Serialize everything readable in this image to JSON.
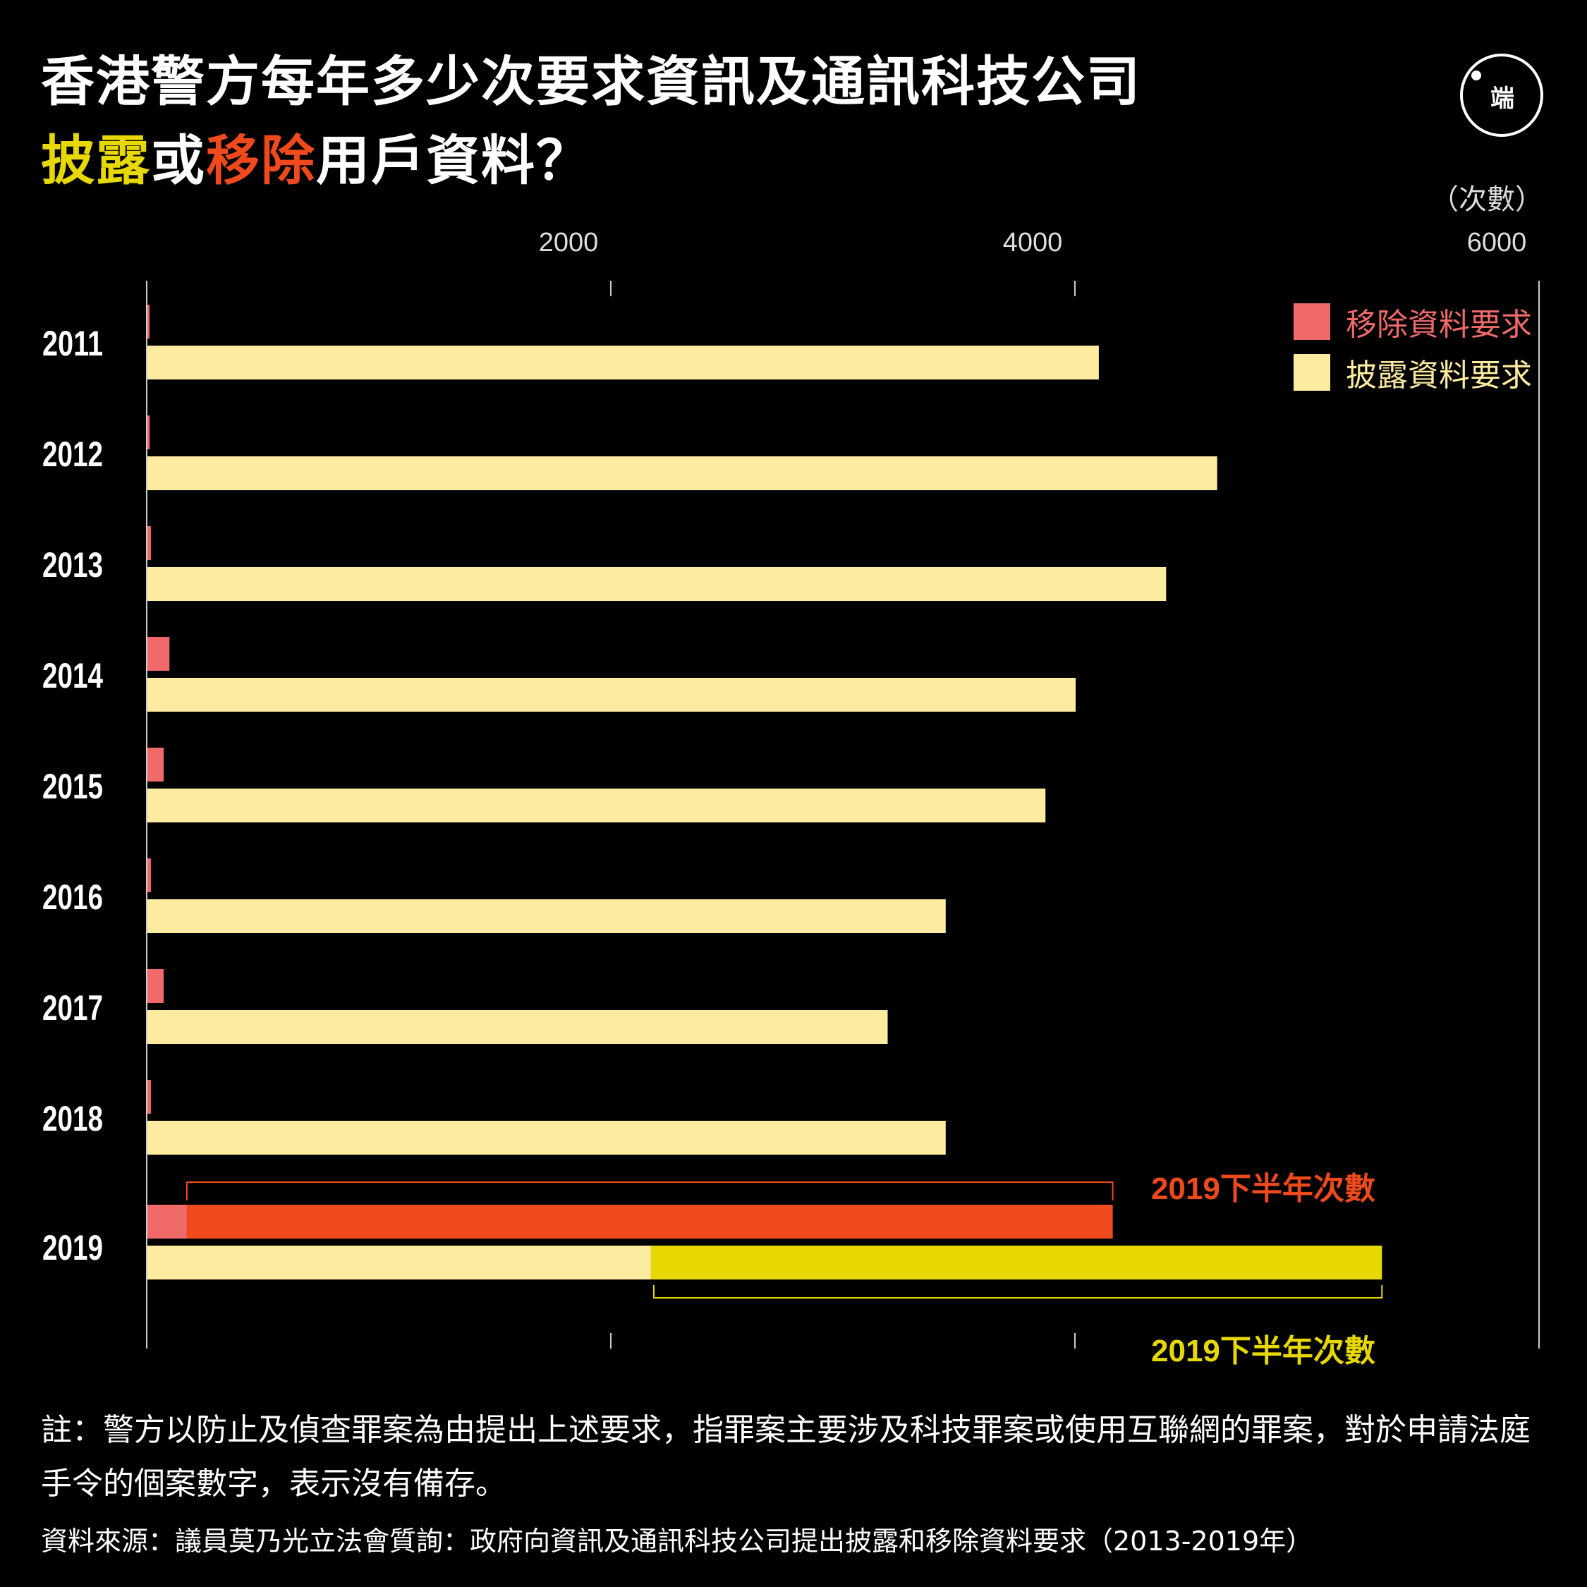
{
  "title": {
    "line1": "香港警方每年多少次要求資訊及通訊科技公司",
    "line2_part1": "披露",
    "line2_part2": "或",
    "line2_part3": "移除",
    "line2_part4": "用戶資料？"
  },
  "logo": {
    "glyph": "端"
  },
  "unit_label": "（次數）",
  "legend": [
    {
      "label": "移除資料要求",
      "color": "#f06a6a",
      "text_color": "#f06a6a"
    },
    {
      "label": "披露資料要求",
      "color": "#fdeba0",
      "text_color": "#fdeba0"
    }
  ],
  "colors": {
    "removal": "#f06a6a",
    "disclosure": "#fdeba0",
    "removal_h2": "#f04a1c",
    "disclosure_h2": "#e6d800",
    "axis": "#cccccc"
  },
  "annotations": {
    "removal_h2_label": "2019下半年次數",
    "disclosure_h2_label": "2019下半年次數"
  },
  "chart_data": {
    "type": "bar",
    "orientation": "horizontal",
    "categories": [
      "2011",
      "2012",
      "2013",
      "2014",
      "2015",
      "2016",
      "2017",
      "2018",
      "2019"
    ],
    "series": [
      {
        "name": "移除資料要求",
        "values": [
          5,
          10,
          15,
          95,
          70,
          15,
          70,
          15,
          4160
        ]
      },
      {
        "name": "披露資料要求",
        "values": [
          4100,
          4610,
          4390,
          4000,
          3870,
          3440,
          3190,
          3440,
          5320
        ]
      }
    ],
    "split_2019": {
      "removal_first_half": 170,
      "removal_second_half": 3990,
      "disclosure_first_half": 2170,
      "disclosure_second_half": 3150
    },
    "x_ticks": [
      2000,
      4000,
      6000
    ],
    "xlim": [
      0,
      6000
    ],
    "xlabel": "（次數）",
    "legend_position": "top-right",
    "grid": false
  },
  "footnote": "註：警方以防止及偵查罪案為由提出上述要求，指罪案主要涉及科技罪案或使用互聯網的罪案，對於申請法庭手令的個案數字，表示沒有備存。",
  "source": "資料來源：議員莫乃光立法會質詢：政府向資訊及通訊科技公司提出披露和移除資料要求（2013-2019年）"
}
